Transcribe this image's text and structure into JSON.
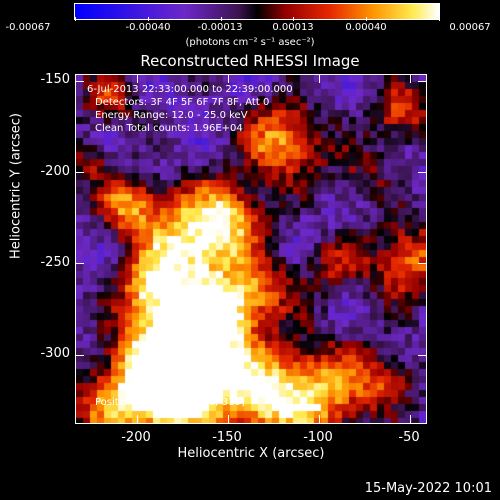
{
  "colorbar": {
    "ticks": [
      "-0.00067",
      "-0.00040",
      "-0.00013",
      "0.00013",
      "0.00040",
      "0.00067"
    ],
    "units": "(photons cm⁻² s⁻¹ asec⁻²)"
  },
  "plot": {
    "title": "Reconstructed RHESSI Image",
    "time_range": "6-Jul-2013 22:33:00.000 to 22:39:00.000",
    "detectors": "Detectors: 3F 4F 5F 6F 7F 8F, Att 0",
    "energy_range": "Energy Range: 12.0 - 25.0 keV",
    "clean_line": "Clean    Total counts: 1.96E+04",
    "peak_position": "Position of Peak = [-176,-310]",
    "x_axis_label": "Heliocentric X (arcsec)",
    "y_axis_label": "Heliocentric Y (arcsec)",
    "x_ticks": [
      "-200",
      "-150",
      "-100",
      "-50"
    ],
    "y_ticks": [
      "-150",
      "-200",
      "-250",
      "-300"
    ]
  },
  "footer": {
    "date": "15-May-2022 10:01"
  },
  "colors": {
    "background": "#000000",
    "foreground": "#ffffff"
  }
}
